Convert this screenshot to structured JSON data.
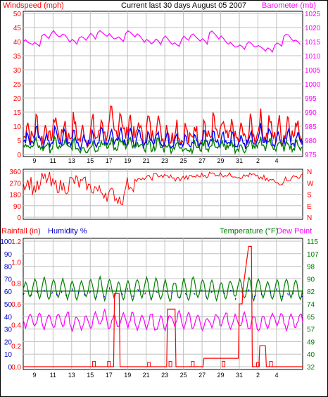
{
  "header": {
    "left_label": "Windspeed (mph)",
    "title": "Current last 30 days August 05 2007",
    "right_label": "Barometer (mb)"
  },
  "colors": {
    "windspeed": "#ff0000",
    "windspeed_avg": "#0000ff",
    "windspeed_low": "#008000",
    "barometer": "#ff00ff",
    "direction": "#ff0000",
    "rainfall": "#ff0000",
    "humidity": "#0000cc",
    "temperature": "#008000",
    "dewpoint": "#ff00ff",
    "grid": "#c0c0c0"
  },
  "x_ticks": [
    "9",
    "11",
    "13",
    "15",
    "17",
    "19",
    "21",
    "23",
    "25",
    "27",
    "29",
    "31",
    "2",
    "4"
  ],
  "chart_data": [
    {
      "type": "line",
      "name": "wind-barometer",
      "ylabel_left": "Windspeed (mph)",
      "ylabel_right": "Barometer (mb)",
      "y_left_ticks": [
        0,
        5,
        10,
        15,
        20,
        25,
        30,
        35,
        40,
        45,
        50
      ],
      "y_left_lim": [
        0,
        50
      ],
      "y_right_ticks": [
        975,
        980,
        985,
        990,
        995,
        1000,
        1005,
        1010,
        1015,
        1020,
        1025
      ],
      "y_right_lim": [
        975,
        1025
      ],
      "days": 30,
      "barometer_daily": [
        1015,
        1014,
        1017,
        1018,
        1017,
        1015,
        1016,
        1017,
        1018,
        1017,
        1016,
        1018,
        1017,
        1015,
        1015,
        1016,
        1014,
        1016,
        1017,
        1015,
        1018,
        1016,
        1014,
        1013,
        1014,
        1013,
        1012,
        1014,
        1017,
        1015
      ],
      "wind_gust_daily": [
        12,
        13,
        11,
        14,
        12,
        13,
        10,
        12,
        13,
        15,
        16,
        14,
        12,
        13,
        14,
        11,
        12,
        10,
        11,
        12,
        13,
        12,
        11,
        10,
        12,
        14,
        13,
        12,
        14,
        13
      ],
      "wind_avg_daily": [
        8,
        9,
        7,
        9,
        8,
        8,
        6,
        8,
        9,
        9,
        10,
        9,
        8,
        8,
        9,
        7,
        8,
        6,
        7,
        8,
        9,
        8,
        7,
        6,
        8,
        10,
        9,
        8,
        9,
        8
      ]
    },
    {
      "type": "line",
      "name": "wind-direction",
      "y_ticks": [
        "360",
        "270",
        "180",
        "90",
        "0"
      ],
      "y_lim": [
        0,
        360
      ],
      "compass_labels": [
        "N",
        "W",
        "S",
        "E",
        "N"
      ],
      "direction_daily": [
        270,
        230,
        300,
        250,
        240,
        280,
        260,
        230,
        200,
        180,
        150,
        260,
        290,
        310,
        330,
        320,
        300,
        310,
        320,
        330,
        340,
        335,
        330,
        320,
        330,
        310,
        290,
        270,
        300,
        320
      ]
    },
    {
      "type": "line",
      "name": "rain-humidity-temperature",
      "rain_label": "Rainfall (in)",
      "humidity_label": "Humidity %",
      "temperature_label": "Temperature (°F)",
      "dewpoint_label": "Dew Point",
      "rain_ticks": [
        "1.2",
        "1.0",
        "0.8",
        "0.6",
        "0.4",
        "0.2",
        "0.0"
      ],
      "rain_lim": [
        0,
        1.2
      ],
      "humidity_ticks": [
        "100",
        "90",
        "80",
        "70",
        "60",
        "50",
        "40",
        "30",
        "20",
        "10",
        "0"
      ],
      "humidity_lim": [
        0,
        100
      ],
      "temp_ticks": [
        "115",
        "107",
        "98",
        "90",
        "82",
        "74",
        "65",
        "57",
        "49",
        "40",
        "32"
      ],
      "temp_lim": [
        32,
        115
      ],
      "temperature_high_daily": [
        88,
        90,
        91,
        89,
        90,
        89,
        88,
        90,
        91,
        90,
        88,
        89,
        90,
        91,
        90,
        89,
        88,
        90,
        91,
        90,
        89,
        88,
        89,
        90,
        91,
        90,
        88,
        89,
        90,
        89
      ],
      "temperature_low_daily": [
        78,
        77,
        76,
        78,
        77,
        76,
        78,
        77,
        76,
        78,
        77,
        76,
        78,
        77,
        76,
        75,
        77,
        76,
        78,
        77,
        76,
        77,
        78,
        77,
        76,
        78,
        77,
        76,
        78,
        77
      ],
      "dewpoint_daily": [
        64,
        65,
        63,
        64,
        65,
        62,
        63,
        64,
        66,
        63,
        64,
        65,
        63,
        64,
        62,
        63,
        65,
        64,
        63,
        62,
        64,
        65,
        63,
        64,
        63,
        62,
        64,
        65,
        63,
        64
      ],
      "rain_points": [
        {
          "day": 7.6,
          "in": 0.05
        },
        {
          "day": 9.2,
          "in": 0.05
        },
        {
          "day": 13.5,
          "in": 0.04
        },
        {
          "day": 15.8,
          "in": 0.05
        },
        {
          "day": 18.2,
          "in": 0.05
        },
        {
          "day": 21.5,
          "in": 0.05
        },
        {
          "day": 25.2,
          "in": 0.04
        },
        {
          "day": 26.6,
          "in": 0.05
        }
      ],
      "rain_cumulative": [
        {
          "day": 0,
          "in": 0.0
        },
        {
          "day": 9.7,
          "in": 0.0
        },
        {
          "day": 9.8,
          "in": 0.7
        },
        {
          "day": 10.3,
          "in": 0.7
        },
        {
          "day": 10.4,
          "in": 0.0
        },
        {
          "day": 15.4,
          "in": 0.0
        },
        {
          "day": 15.5,
          "in": 0.55
        },
        {
          "day": 16.3,
          "in": 0.55
        },
        {
          "day": 16.4,
          "in": 0.0
        },
        {
          "day": 19.3,
          "in": 0.0
        },
        {
          "day": 19.4,
          "in": 0.08
        },
        {
          "day": 23.1,
          "in": 0.08
        },
        {
          "day": 23.2,
          "in": 0.6
        },
        {
          "day": 23.5,
          "in": 0.6
        },
        {
          "day": 23.6,
          "in": 0.75
        },
        {
          "day": 24.2,
          "in": 1.15
        },
        {
          "day": 24.5,
          "in": 1.15
        },
        {
          "day": 24.6,
          "in": 0.0
        },
        {
          "day": 25.3,
          "in": 0.0
        },
        {
          "day": 25.4,
          "in": 0.2
        },
        {
          "day": 26.0,
          "in": 0.2
        },
        {
          "day": 26.1,
          "in": 0.0
        },
        {
          "day": 30,
          "in": 0.0
        }
      ]
    }
  ]
}
